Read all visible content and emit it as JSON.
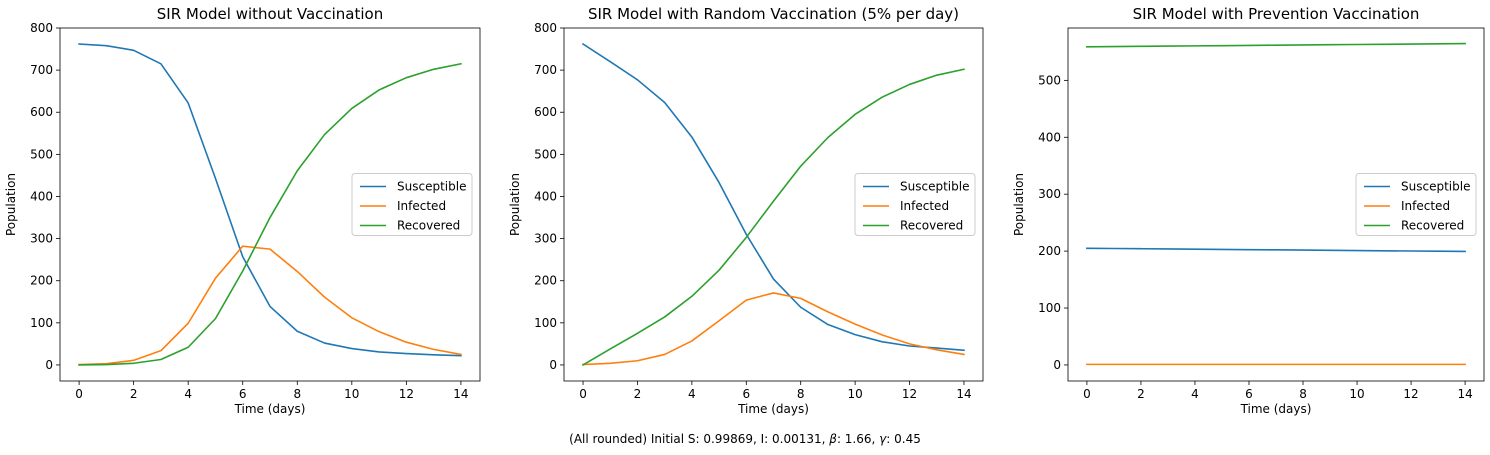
{
  "caption_parts": [
    "(All rounded) Initial S: 0.99869, I: 0.00131, ",
    "β",
    ": 1.66, ",
    "γ",
    ": 0.45"
  ],
  "chart_data": [
    {
      "type": "line",
      "title": "SIR Model without Vaccination",
      "xlabel": "Time (days)",
      "ylabel": "Population",
      "xlim": [
        -0.7,
        14.7
      ],
      "ylim": [
        -38.1,
        800
      ],
      "xticks": [
        0,
        2,
        4,
        6,
        8,
        10,
        12,
        14
      ],
      "yticks": [
        0,
        100,
        200,
        300,
        400,
        500,
        600,
        700,
        800
      ],
      "legend": "center-right",
      "x": [
        0,
        1,
        2,
        3,
        4,
        5,
        6,
        7,
        8,
        9,
        10,
        11,
        12,
        13,
        14
      ],
      "series": [
        {
          "name": "Susceptible",
          "color": "#1f77b4",
          "values": [
            762,
            758,
            747,
            715,
            622,
            443,
            257,
            139,
            80,
            52,
            39,
            31,
            27,
            24,
            22
          ]
        },
        {
          "name": "Infected",
          "color": "#ff7f0e",
          "values": [
            1,
            3,
            11,
            34,
            99,
            206,
            282,
            275,
            222,
            161,
            112,
            79,
            54,
            37,
            25
          ]
        },
        {
          "name": "Recovered",
          "color": "#2ca02c",
          "values": [
            0,
            1,
            4,
            13,
            42,
            110,
            223,
            350,
            461,
            547,
            609,
            653,
            682,
            702,
            715
          ]
        }
      ]
    },
    {
      "type": "line",
      "title": "SIR Model with Random Vaccination (5% per day)",
      "xlabel": "Time (days)",
      "ylabel": "Population",
      "xlim": [
        -0.7,
        14.7
      ],
      "ylim": [
        -38.1,
        800
      ],
      "xticks": [
        0,
        2,
        4,
        6,
        8,
        10,
        12,
        14
      ],
      "yticks": [
        0,
        100,
        200,
        300,
        400,
        500,
        600,
        700,
        800
      ],
      "legend": "center-right",
      "x": [
        0,
        1,
        2,
        3,
        4,
        5,
        6,
        7,
        8,
        9,
        10,
        11,
        12,
        13,
        14
      ],
      "series": [
        {
          "name": "Susceptible",
          "color": "#1f77b4",
          "values": [
            762,
            720,
            677,
            623,
            541,
            433,
            310,
            204,
            137,
            96,
            72,
            55,
            45,
            40,
            35
          ]
        },
        {
          "name": "Infected",
          "color": "#ff7f0e",
          "values": [
            1,
            4,
            10,
            25,
            57,
            105,
            154,
            171,
            158,
            126,
            97,
            71,
            50,
            36,
            25
          ]
        },
        {
          "name": "Recovered",
          "color": "#2ca02c",
          "values": [
            0,
            38,
            75,
            114,
            163,
            225,
            303,
            389,
            472,
            540,
            595,
            636,
            666,
            688,
            702
          ]
        }
      ]
    },
    {
      "type": "line",
      "title": "SIR Model with Prevention Vaccination",
      "xlabel": "Time (days)",
      "ylabel": "Population",
      "xlim": [
        -0.7,
        14.7
      ],
      "ylim": [
        -28.2,
        592
      ],
      "xticks": [
        0,
        2,
        4,
        6,
        8,
        10,
        12,
        14
      ],
      "yticks": [
        0,
        100,
        200,
        300,
        400,
        500
      ],
      "legend": "center-right",
      "x": [
        0,
        1,
        2,
        3,
        4,
        5,
        6,
        7,
        8,
        9,
        10,
        11,
        12,
        13,
        14
      ],
      "series": [
        {
          "name": "Susceptible",
          "color": "#1f77b4",
          "values": [
            205,
            204.6,
            204.2,
            203.8,
            203.4,
            203,
            202.6,
            202.2,
            201.8,
            201.4,
            201,
            200.6,
            200.2,
            199.8,
            199.4
          ]
        },
        {
          "name": "Infected",
          "color": "#ff7f0e",
          "values": [
            1,
            1,
            1,
            1,
            1,
            1,
            1,
            1,
            1,
            1,
            1,
            1,
            1,
            1,
            1
          ]
        },
        {
          "name": "Recovered",
          "color": "#2ca02c",
          "values": [
            559,
            559.4,
            559.8,
            560.2,
            560.6,
            561,
            561.4,
            561.8,
            562.2,
            562.6,
            563,
            563.4,
            563.8,
            564.2,
            564.6
          ]
        }
      ]
    }
  ]
}
